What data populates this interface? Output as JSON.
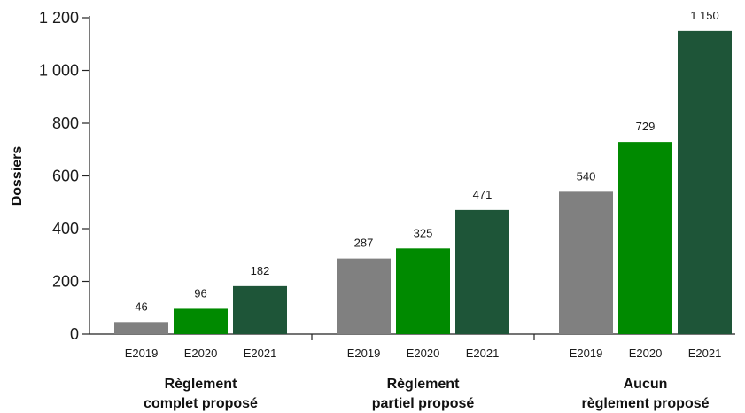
{
  "chart_data": {
    "type": "bar",
    "ylabel": "Dossiers",
    "ylim": [
      0,
      1200
    ],
    "yticks": [
      0,
      200,
      400,
      600,
      800,
      1000,
      1200
    ],
    "ytick_labels": [
      "0",
      "200",
      "400",
      "600",
      "800",
      "1 000",
      "1 200"
    ],
    "grid": false,
    "categories": [
      "Règlement complet proposé",
      "Règlement partiel proposé",
      "Aucun règlement proposé"
    ],
    "category_label_lines": [
      [
        "Règlement",
        "complet proposé"
      ],
      [
        "Règlement",
        "partiel proposé"
      ],
      [
        "Aucun",
        "règlement proposé"
      ]
    ],
    "series": [
      {
        "name": "E2019",
        "color": "#808080",
        "values": [
          46,
          287,
          540
        ],
        "value_labels": [
          "46",
          "287",
          "540"
        ]
      },
      {
        "name": "E2020",
        "color": "#008a00",
        "values": [
          96,
          325,
          729
        ],
        "value_labels": [
          "96",
          "325",
          "729"
        ]
      },
      {
        "name": "E2021",
        "color": "#1e5538",
        "values": [
          182,
          471,
          1150
        ],
        "value_labels": [
          "182",
          "471",
          "1 150"
        ]
      }
    ]
  }
}
